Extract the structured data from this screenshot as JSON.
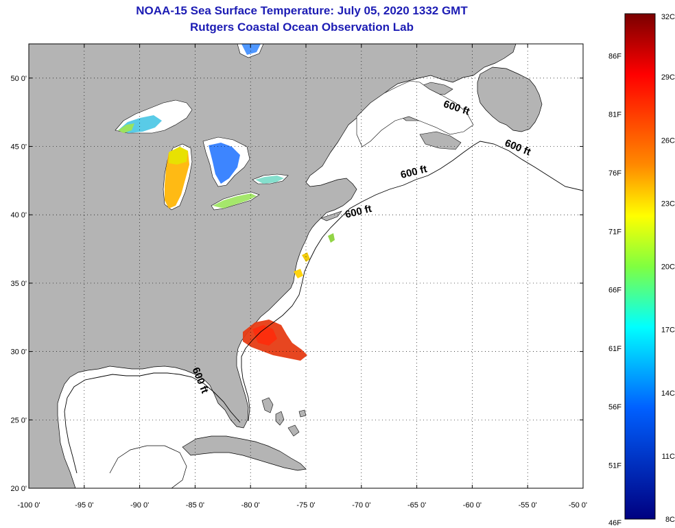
{
  "header": {
    "title": "NOAA-15 Sea Surface Temperature:  July 05, 2020 1332 GMT",
    "subtitle": "Rutgers Coastal Ocean Observation Lab"
  },
  "axes": {
    "lat_labels": [
      "50 0'",
      "45 0'",
      "40 0'",
      "35 0'",
      "30 0'",
      "25 0'",
      "20 0'"
    ],
    "lat_values": [
      50,
      45,
      40,
      35,
      30,
      25,
      20
    ],
    "lon_labels": [
      "-100 0'",
      "-95 0'",
      "-90 0'",
      "-85 0'",
      "-80 0'",
      "-75 0'",
      "-70 0'",
      "-65 0'",
      "-60 0'",
      "-55 0'",
      "-50 0'"
    ],
    "lon_values": [
      -100,
      -95,
      -90,
      -85,
      -80,
      -75,
      -70,
      -65,
      -60,
      -55,
      -50
    ],
    "lon_range": [
      -100,
      -50
    ],
    "lat_range": [
      20,
      52.5
    ]
  },
  "isobath_labels": [
    {
      "text": "600 ft",
      "lon": -61.5,
      "lat": 47.6
    },
    {
      "text": "600 ft",
      "lon": -56.0,
      "lat": 44.7
    },
    {
      "text": "600 ft",
      "lon": -65.2,
      "lat": 42.9
    },
    {
      "text": "600 ft",
      "lon": -70.2,
      "lat": 40.0
    },
    {
      "text": "600 ft",
      "lon": -84.8,
      "lat": 27.8
    }
  ],
  "colorbar": {
    "celsius_labels": [
      "32C",
      "29C",
      "26C",
      "23C",
      "20C",
      "17C",
      "14C",
      "11C",
      "8C"
    ],
    "celsius_values": [
      32,
      29,
      26,
      23,
      20,
      17,
      14,
      11,
      8
    ],
    "fahrenheit_labels": [
      "86F",
      "81F",
      "76F",
      "71F",
      "66F",
      "61F",
      "56F",
      "51F",
      "46F"
    ],
    "fahrenheit_values": [
      86,
      81,
      76,
      71,
      66,
      61,
      56,
      51,
      46
    ],
    "range_c": [
      8,
      32
    ]
  },
  "colors": {
    "land": "#b4b4b4",
    "ocean": "#ffffff",
    "title": "#1c1cb4"
  }
}
